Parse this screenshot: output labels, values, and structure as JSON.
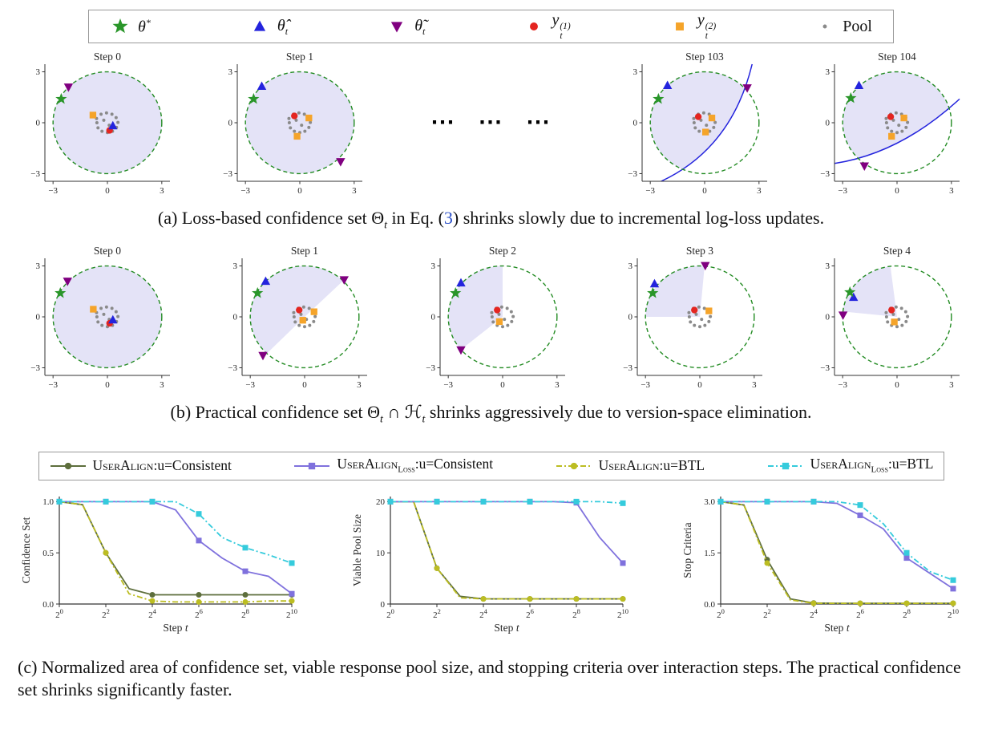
{
  "colors": {
    "theta_star": "#2a962a",
    "theta_hat": "#2424dd",
    "theta_tilde": "#800080",
    "y1": "#e42520",
    "y2": "#f5a42a",
    "pool": "#8a8a8a",
    "region_fill": "#e4e3f7",
    "boundary_circle": "#228B22",
    "loss_curve": "#2424dd",
    "eq_link": "#2b50c8",
    "axis": "#333333"
  },
  "marker_legend": {
    "items": [
      {
        "marker": "star",
        "color": "#2a962a",
        "base": "θ",
        "sup": "*",
        "sub": "",
        "italic": true
      },
      {
        "marker": "triangle-up",
        "color": "#2424dd",
        "base": "θ̂",
        "sup": "",
        "sub": "t",
        "italic": true
      },
      {
        "marker": "triangle-down",
        "color": "#800080",
        "base": "θ̃",
        "sup": "",
        "sub": "t",
        "italic": true
      },
      {
        "marker": "circle",
        "color": "#e42520",
        "base": "y",
        "sup": "(1)",
        "sub": "t",
        "italic": true
      },
      {
        "marker": "square",
        "color": "#f5a42a",
        "base": "y",
        "sup": "(2)",
        "sub": "t",
        "italic": true
      },
      {
        "marker": "dot",
        "color": "#8a8a8a",
        "base": "Pool",
        "sup": "",
        "sub": "",
        "italic": false
      }
    ]
  },
  "line_legend": {
    "items": [
      {
        "name": "UserAlign",
        "subscript": "",
        "suffix": ":u=Consistent",
        "color": "#5d6e3c",
        "marker": "circle",
        "dash": "solid"
      },
      {
        "name": "UserAlign",
        "subscript": "Loss",
        "suffix": ":u=Consistent",
        "color": "#7f71dd",
        "marker": "square",
        "dash": "solid"
      },
      {
        "name": "UserAlign",
        "subscript": "",
        "suffix": ":u=BTL",
        "color": "#bcbd22",
        "marker": "circle",
        "dash": "dashdot"
      },
      {
        "name": "UserAlign",
        "subscript": "Loss",
        "suffix": ":u=BTL",
        "color": "#35cbdc",
        "marker": "square",
        "dash": "dashdot"
      }
    ]
  },
  "captions": {
    "a": [
      {
        "t": "(a) Loss-based confidence set Θ"
      },
      {
        "s": "t"
      },
      {
        "t": " in Eq. ("
      },
      {
        "l": "3"
      },
      {
        "t": ") shrinks slowly due to incremental log-loss updates."
      }
    ],
    "b": [
      {
        "t": "(b) Practical confidence set Θ"
      },
      {
        "s": "t"
      },
      {
        "t": " ∩ ℋ"
      },
      {
        "s": "t"
      },
      {
        "t": " shrinks aggressively due to version-space elimination."
      }
    ],
    "c": [
      {
        "t": "(c) Normalized area of confidence set, viable response pool size, and stopping criteria over interaction steps. The practical confidence set shrinks significantly faster."
      }
    ]
  },
  "chart_data": [
    {
      "id": "a",
      "type": "scatter",
      "dots": "⋯ ⋯ ⋯",
      "tick_values": [
        -3,
        0,
        3
      ],
      "tick_labels": [
        "−3",
        "0",
        "3"
      ],
      "boundary_radius": 3,
      "pool": [
        [
          -0.6,
          0.25
        ],
        [
          -0.35,
          0.5
        ],
        [
          -0.05,
          0.58
        ],
        [
          0.25,
          0.5
        ],
        [
          0.48,
          0.3
        ],
        [
          0.58,
          0.02
        ],
        [
          0.5,
          -0.28
        ],
        [
          0.28,
          -0.5
        ],
        [
          0.0,
          -0.58
        ],
        [
          -0.3,
          -0.5
        ],
        [
          -0.52,
          -0.3
        ],
        [
          -0.58,
          0.0
        ],
        [
          -0.2,
          0.15
        ],
        [
          0.1,
          -0.15
        ]
      ],
      "panels": [
        {
          "title": "Step 0",
          "region": {
            "type": "full"
          },
          "theta_star": [
            [
              -2.55,
              1.4
            ]
          ],
          "theta_hat": [
            [
              0.3,
              -0.18
            ]
          ],
          "theta_tilde": [
            [
              -2.15,
              2.1
            ]
          ],
          "y1": [
            [
              0.12,
              -0.45
            ]
          ],
          "y2": [
            [
              -0.8,
              0.45
            ]
          ]
        },
        {
          "title": "Step 1",
          "region": {
            "type": "full"
          },
          "theta_star": [
            [
              -2.55,
              1.4
            ]
          ],
          "theta_hat": [
            [
              -2.1,
              2.15
            ]
          ],
          "theta_tilde": [
            [
              2.25,
              -2.3
            ]
          ],
          "y1": [
            [
              -0.3,
              0.4
            ]
          ],
          "y2": [
            [
              0.5,
              0.28
            ],
            [
              -0.15,
              -0.8
            ]
          ]
        },
        {
          "title": "Step 103",
          "region": {
            "type": "curve",
            "start": [
              -2.4,
              -3.45
            ],
            "ctrl": [
              1.5,
              -1.5
            ],
            "end": [
              2.62,
              3.45
            ],
            "corners": [
              [
                3.45,
                3.45
              ],
              [
                3.45,
                -3.45
              ]
            ]
          },
          "theta_star": [
            [
              -2.55,
              1.4
            ]
          ],
          "theta_hat": [
            [
              -2.05,
              2.2
            ]
          ],
          "theta_tilde": [
            [
              2.35,
              2.05
            ]
          ],
          "y1": [
            [
              -0.35,
              0.35
            ]
          ],
          "y2": [
            [
              0.4,
              0.28
            ],
            [
              0.05,
              -0.55
            ]
          ]
        },
        {
          "title": "Step 104",
          "region": {
            "type": "curve",
            "start": [
              -3.45,
              -2.4
            ],
            "ctrl": [
              0.2,
              -1.8
            ],
            "end": [
              3.45,
              1.4
            ],
            "corners": [
              [
                3.45,
                -3.45
              ],
              [
                -3.45,
                -3.45
              ]
            ]
          },
          "theta_star": [
            [
              -2.55,
              1.45
            ]
          ],
          "theta_hat": [
            [
              -2.1,
              2.2
            ]
          ],
          "theta_tilde": [
            [
              -1.8,
              -2.55
            ]
          ],
          "y1": [
            [
              -0.35,
              0.35
            ]
          ],
          "y2": [
            [
              0.38,
              0.28
            ],
            [
              -0.3,
              -0.8
            ]
          ]
        }
      ]
    },
    {
      "id": "b",
      "type": "scatter",
      "dots": "",
      "tick_values": [
        -3,
        0,
        3
      ],
      "tick_labels": [
        "−3",
        "0",
        "3"
      ],
      "boundary_radius": 3,
      "pool": [
        [
          -0.6,
          0.25
        ],
        [
          -0.35,
          0.5
        ],
        [
          -0.05,
          0.58
        ],
        [
          0.25,
          0.5
        ],
        [
          0.48,
          0.3
        ],
        [
          0.58,
          0.02
        ],
        [
          0.5,
          -0.28
        ],
        [
          0.28,
          -0.5
        ],
        [
          0.0,
          -0.58
        ],
        [
          -0.3,
          -0.5
        ],
        [
          -0.52,
          -0.3
        ],
        [
          -0.58,
          0.0
        ],
        [
          -0.2,
          0.15
        ],
        [
          0.1,
          -0.15
        ]
      ],
      "panels": [
        {
          "title": "Step 0",
          "region": {
            "type": "full"
          },
          "theta_star": [
            [
              -2.6,
              1.4
            ]
          ],
          "theta_hat": [
            [
              0.3,
              -0.18
            ]
          ],
          "theta_tilde": [
            [
              -2.2,
              2.1
            ]
          ],
          "y1": [
            [
              0.12,
              -0.38
            ]
          ],
          "y2": [
            [
              -0.78,
              0.45
            ]
          ]
        },
        {
          "title": "Step 1",
          "region": {
            "type": "sector",
            "a1": 45,
            "a2": 226
          },
          "theta_star": [
            [
              -2.6,
              1.4
            ]
          ],
          "theta_hat": [
            [
              -2.15,
              2.1
            ]
          ],
          "theta_tilde": [
            [
              2.18,
              2.18
            ],
            [
              -2.3,
              -2.28
            ]
          ],
          "y1": [
            [
              -0.3,
              0.4
            ]
          ],
          "y2": [
            [
              0.52,
              0.3
            ],
            [
              -0.1,
              -0.2
            ]
          ]
        },
        {
          "title": "Step 2",
          "region": {
            "type": "sector",
            "a1": 90,
            "a2": 220
          },
          "theta_star": [
            [
              -2.6,
              1.4
            ]
          ],
          "theta_hat": [
            [
              -2.3,
              2.0
            ]
          ],
          "theta_tilde": [
            [
              -2.3,
              -1.95
            ]
          ],
          "y1": [
            [
              -0.3,
              0.4
            ]
          ],
          "y2": [
            [
              -0.18,
              -0.28
            ]
          ]
        },
        {
          "title": "Step 3",
          "region": {
            "type": "sector",
            "a1": 85,
            "a2": 180
          },
          "theta_star": [
            [
              -2.6,
              1.4
            ]
          ],
          "theta_hat": [
            [
              -2.5,
              1.95
            ]
          ],
          "theta_tilde": [
            [
              0.3,
              3.02
            ]
          ],
          "y1": [
            [
              -0.3,
              0.4
            ]
          ],
          "y2": [
            [
              0.5,
              0.35
            ]
          ]
        },
        {
          "title": "Step 4",
          "region": {
            "type": "sector",
            "a1": 97,
            "a2": 174
          },
          "theta_star": [
            [
              -2.6,
              1.45
            ]
          ],
          "theta_hat": [
            [
              -2.4,
              1.15
            ]
          ],
          "theta_tilde": [
            [
              -2.98,
              0.1
            ]
          ],
          "y1": [
            [
              -0.3,
              0.4
            ]
          ],
          "y2": [
            [
              -0.15,
              -0.3
            ]
          ]
        }
      ]
    },
    {
      "id": "confidence",
      "type": "line",
      "ylabel": "Confidence Set",
      "xlabel_prefix": "Step ",
      "xlabel_var": "t",
      "ylim": [
        0,
        1.05
      ],
      "ytick_values": [
        0,
        0.5,
        1.0
      ],
      "ytick_labels": [
        "0.0",
        "0.5",
        "1.0"
      ],
      "xtick_exponents": [
        0,
        2,
        4,
        6,
        8,
        10
      ],
      "x_exponents": [
        0,
        1,
        2,
        3,
        4,
        5,
        6,
        7,
        8,
        9,
        10
      ],
      "series": [
        {
          "legend_index": 0,
          "values": [
            1.0,
            0.97,
            0.5,
            0.15,
            0.09,
            0.09,
            0.09,
            0.09,
            0.09,
            0.09,
            0.09
          ]
        },
        {
          "legend_index": 1,
          "values": [
            1.0,
            1.0,
            1.0,
            1.0,
            1.0,
            0.92,
            0.62,
            0.45,
            0.32,
            0.27,
            0.1
          ]
        },
        {
          "legend_index": 2,
          "values": [
            1.0,
            0.97,
            0.5,
            0.1,
            0.03,
            0.02,
            0.02,
            0.02,
            0.02,
            0.03,
            0.03
          ]
        },
        {
          "legend_index": 3,
          "values": [
            1.0,
            1.0,
            1.0,
            1.0,
            1.0,
            1.0,
            0.88,
            0.65,
            0.55,
            0.48,
            0.4
          ]
        }
      ]
    },
    {
      "id": "pool_size",
      "type": "line",
      "ylabel": "Viable Pool Size",
      "xlabel_prefix": "Step ",
      "xlabel_var": "t",
      "ylim": [
        0,
        21
      ],
      "ytick_values": [
        0,
        10,
        20
      ],
      "ytick_labels": [
        "0",
        "10",
        "20"
      ],
      "xtick_exponents": [
        0,
        2,
        4,
        6,
        8,
        10
      ],
      "x_exponents": [
        0,
        1,
        2,
        3,
        4,
        5,
        6,
        7,
        8,
        9,
        10
      ],
      "series": [
        {
          "legend_index": 0,
          "values": [
            20,
            20,
            7,
            1.5,
            1,
            1,
            1,
            1,
            1,
            1,
            1
          ]
        },
        {
          "legend_index": 1,
          "values": [
            20,
            20,
            20,
            20,
            20,
            20,
            20,
            20,
            19.8,
            13,
            8
          ]
        },
        {
          "legend_index": 2,
          "values": [
            20,
            20,
            7,
            1.2,
            1,
            1,
            1,
            1,
            1,
            1,
            1
          ]
        },
        {
          "legend_index": 3,
          "values": [
            20,
            20,
            20,
            20,
            20,
            20,
            20,
            20,
            20,
            20,
            19.7
          ]
        }
      ]
    },
    {
      "id": "stop",
      "type": "line",
      "ylabel": "Stop Criteria",
      "xlabel_prefix": "Step ",
      "xlabel_var": "t",
      "ylim": [
        0,
        3.15
      ],
      "ytick_values": [
        0,
        1.5,
        3.0
      ],
      "ytick_labels": [
        "0.0",
        "1.5",
        "3.0"
      ],
      "xtick_exponents": [
        0,
        2,
        4,
        6,
        8,
        10
      ],
      "x_exponents": [
        0,
        1,
        2,
        3,
        4,
        5,
        6,
        7,
        8,
        9,
        10
      ],
      "series": [
        {
          "legend_index": 0,
          "values": [
            3,
            2.9,
            1.3,
            0.15,
            0.03,
            0.02,
            0.02,
            0.02,
            0.02,
            0.02,
            0.02
          ]
        },
        {
          "legend_index": 1,
          "values": [
            3,
            3,
            3,
            3,
            3,
            2.95,
            2.6,
            2.2,
            1.35,
            0.9,
            0.45
          ]
        },
        {
          "legend_index": 2,
          "values": [
            3,
            2.9,
            1.2,
            0.12,
            0.02,
            0.02,
            0.02,
            0.02,
            0.02,
            0.02,
            0.02
          ]
        },
        {
          "legend_index": 3,
          "values": [
            3,
            3,
            3,
            3,
            3,
            3,
            2.9,
            2.35,
            1.5,
            0.95,
            0.7
          ]
        }
      ]
    }
  ]
}
